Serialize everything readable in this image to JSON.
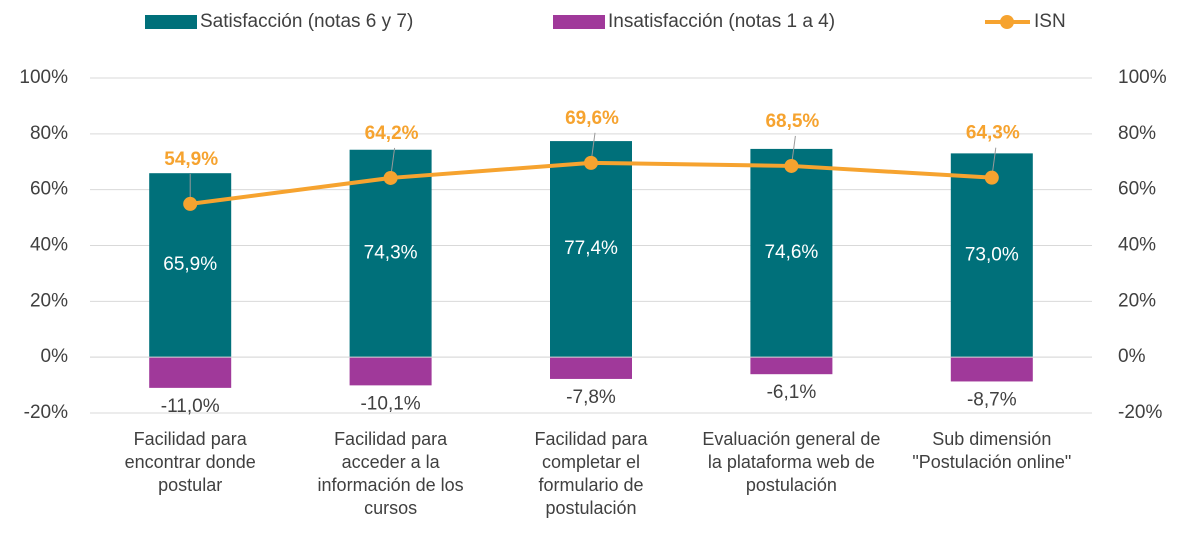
{
  "chart_data": {
    "type": "bar",
    "categories": [
      "Facilidad para encontrar donde postular",
      "Facilidad para acceder a la información de los cursos",
      "Facilidad para completar el formulario de postulación",
      "Evaluación general de la plataforma web de postulación",
      "Sub dimensión \"Postulación online\""
    ],
    "series": [
      {
        "name": "Satisfacción (notas 6 y 7)",
        "color": "#00707a",
        "type": "bar",
        "values": [
          65.9,
          74.3,
          77.4,
          74.6,
          73.0
        ],
        "value_labels": [
          "65,9%",
          "74,3%",
          "77,4%",
          "74,6%",
          "73,0%"
        ]
      },
      {
        "name": "Insatisfacción (notas 1 a 4)",
        "color": "#a0399a",
        "type": "bar",
        "values": [
          -11.0,
          -10.1,
          -7.8,
          -6.1,
          -8.7
        ],
        "value_labels": [
          "-11,0%",
          "-10,1%",
          "-7,8%",
          "-6,1%",
          "-8,7%"
        ]
      },
      {
        "name": "ISN",
        "color": "#f6a32f",
        "type": "line",
        "axis": "y2",
        "values": [
          54.9,
          64.2,
          69.6,
          68.5,
          64.3
        ],
        "value_labels": [
          "54,9%",
          "64,2%",
          "69,6%",
          "68,5%",
          "64,3%"
        ]
      }
    ],
    "ylim": [
      -20,
      100
    ],
    "yticks": [
      {
        "value": -20,
        "label": "-20%"
      },
      {
        "value": 0,
        "label": "0%"
      },
      {
        "value": 20,
        "label": "20%"
      },
      {
        "value": 40,
        "label": "40%"
      },
      {
        "value": 60,
        "label": "60%"
      },
      {
        "value": 80,
        "label": "80%"
      },
      {
        "value": 100,
        "label": "100%"
      }
    ],
    "y2lim": [
      -20,
      100
    ],
    "y2ticks": [
      {
        "value": -20,
        "label": "-20%"
      },
      {
        "value": 0,
        "label": "0%"
      },
      {
        "value": 20,
        "label": "20%"
      },
      {
        "value": 40,
        "label": "40%"
      },
      {
        "value": 60,
        "label": "60%"
      },
      {
        "value": 80,
        "label": "80%"
      },
      {
        "value": 100,
        "label": "100%"
      }
    ],
    "grid": true,
    "legend": "top"
  }
}
